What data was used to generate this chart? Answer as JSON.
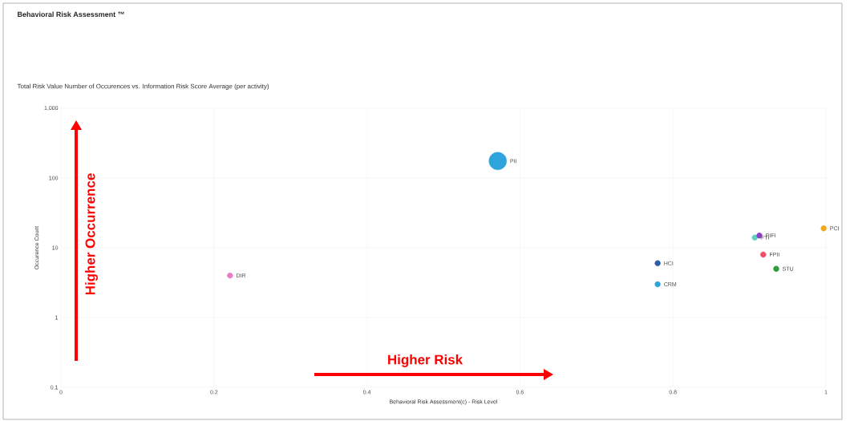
{
  "chart_data": {
    "type": "bubble",
    "title": "Behavioral Risk Assessment ™",
    "subtitle": "Total Risk Value Number of Occurences vs. Information Risk Score Average (per activity)",
    "xlabel": "Behavioral Risk Assessment(c) - Risk Level",
    "ylabel": "Occurence Count",
    "annotations": [
      "Higher Occurrence",
      "Higher Risk"
    ],
    "series": [
      {
        "name": "PII",
        "color": "#2ea3dc",
        "x": [
          0.571
        ],
        "values": [
          175
        ],
        "sizes": [
          1
        ]
      },
      {
        "name": "DIR",
        "color": "#e87ac8",
        "x": [
          0.221
        ],
        "values": [
          4
        ],
        "sizes": [
          0.1
        ]
      },
      {
        "name": "HCI",
        "color": "#2f5ba8",
        "x": [
          0.78
        ],
        "values": [
          6
        ],
        "sizes": [
          0.1
        ]
      },
      {
        "name": "CRM",
        "color": "#2ea3dc",
        "x": [
          0.78
        ],
        "values": [
          3
        ],
        "sizes": [
          0.1
        ]
      },
      {
        "name": "FTI",
        "color": "#5fd3b8",
        "x": [
          0.907
        ],
        "values": [
          14
        ],
        "sizes": [
          0.1
        ]
      },
      {
        "name": "PIFI",
        "color": "#8a3fc4",
        "x": [
          0.913
        ],
        "values": [
          15
        ],
        "sizes": [
          0.1
        ]
      },
      {
        "name": "FPII",
        "color": "#f04d6a",
        "x": [
          0.918
        ],
        "values": [
          8
        ],
        "sizes": [
          0.1
        ]
      },
      {
        "name": "STU",
        "color": "#2e9a3a",
        "x": [
          0.935
        ],
        "values": [
          5
        ],
        "sizes": [
          0.1
        ]
      },
      {
        "name": "PCI",
        "color": "#f2a81d",
        "x": [
          0.997
        ],
        "values": [
          19
        ],
        "sizes": [
          0.1
        ]
      }
    ],
    "xlim": [
      0,
      1
    ],
    "ylim": [
      0.1,
      1000
    ],
    "xticks": [
      0,
      0.2,
      0.4,
      0.6,
      0.8,
      1
    ],
    "yticks": [
      0.1,
      1,
      10,
      100,
      {
        "value": 1000,
        "label": "1,000"
      }
    ],
    "grid": true,
    "log": "y"
  }
}
